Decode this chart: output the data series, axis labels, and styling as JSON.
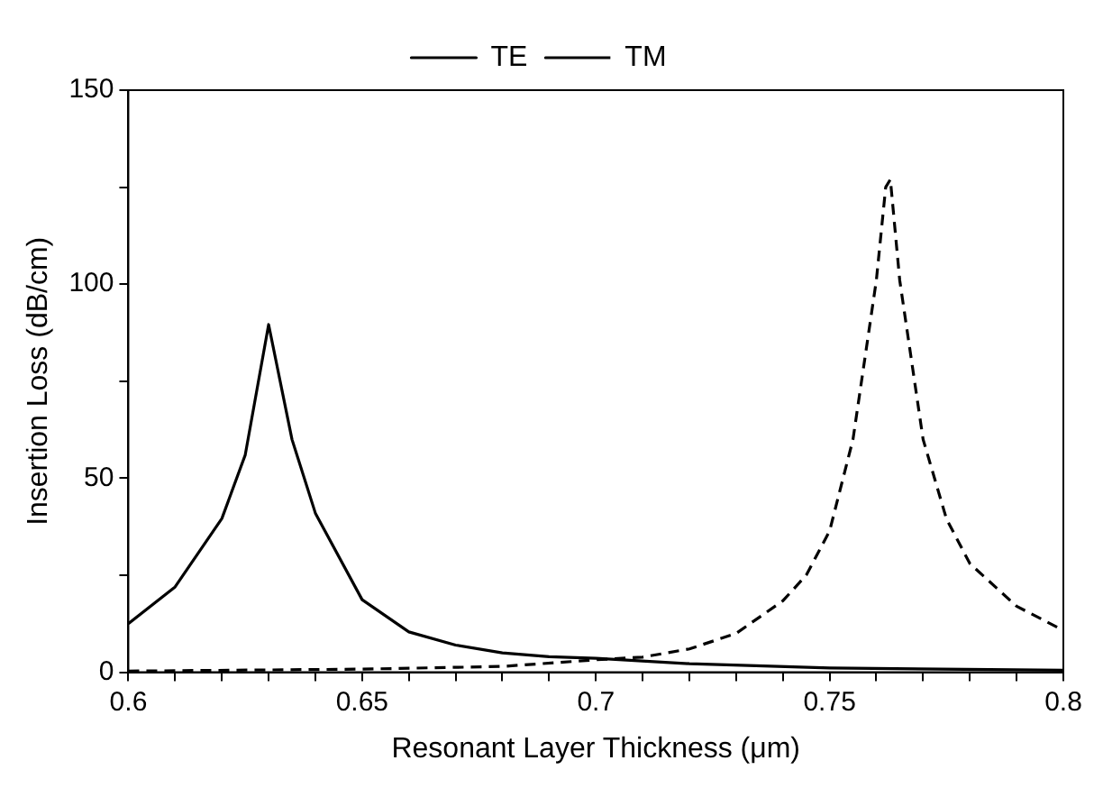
{
  "chart_data": {
    "type": "line",
    "xlabel": "Resonant Layer Thickness (μm)",
    "ylabel": "Insertion Loss (dB/cm)",
    "xlim": [
      0.6,
      0.8
    ],
    "ylim": [
      0,
      150
    ],
    "xticks": [
      0.6,
      {
        "value": 0.61,
        "label": null
      },
      {
        "value": 0.62,
        "label": null
      },
      {
        "value": 0.63,
        "label": null
      },
      {
        "value": 0.64,
        "label": null
      },
      0.65,
      {
        "value": 0.66,
        "label": null
      },
      {
        "value": 0.67,
        "label": null
      },
      {
        "value": 0.68,
        "label": null
      },
      {
        "value": 0.69,
        "label": null
      },
      0.7,
      {
        "value": 0.71,
        "label": null
      },
      {
        "value": 0.72,
        "label": null
      },
      {
        "value": 0.73,
        "label": null
      },
      {
        "value": 0.74,
        "label": null
      },
      0.75,
      {
        "value": 0.76,
        "label": null
      },
      {
        "value": 0.77,
        "label": null
      },
      {
        "value": 0.78,
        "label": null
      },
      {
        "value": 0.79,
        "label": null
      },
      0.8
    ],
    "yticks": [
      0,
      {
        "value": 25,
        "label": null
      },
      50,
      {
        "value": 75,
        "label": null
      },
      100,
      {
        "value": 125,
        "label": null
      },
      150
    ],
    "grid": false,
    "legend": "top",
    "marker": "none",
    "series": [
      {
        "name": "TE",
        "color": "#000000",
        "line_style": "solid",
        "x": [
          0.6,
          0.61,
          0.62,
          0.625,
          0.63,
          0.635,
          0.64,
          0.65,
          0.66,
          0.67,
          0.68,
          0.69,
          0.7,
          0.72,
          0.75,
          0.8
        ],
        "values": [
          12.5,
          22,
          39.6,
          56,
          89.6,
          60,
          41,
          18.7,
          10.4,
          7,
          5,
          4,
          3.6,
          2.2,
          1.1,
          0.5
        ]
      },
      {
        "name": "TM",
        "color": "#000000",
        "line_style": "dashed",
        "x": [
          0.6,
          0.65,
          0.68,
          0.7,
          0.71,
          0.72,
          0.73,
          0.74,
          0.745,
          0.75,
          0.755,
          0.76,
          0.762,
          0.763,
          0.765,
          0.77,
          0.775,
          0.78,
          0.79,
          0.8
        ],
        "values": [
          0.3,
          0.8,
          1.5,
          3.2,
          3.9,
          6,
          10,
          18.4,
          25,
          36.4,
          60,
          101,
          125,
          127,
          101,
          60,
          39.5,
          28,
          17,
          10.8
        ]
      }
    ]
  }
}
